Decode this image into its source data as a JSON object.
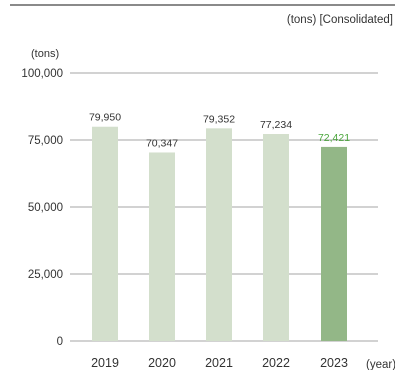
{
  "chart_data": {
    "type": "bar",
    "unit_note": "(tons) [Consolidated]",
    "y_unit": "(tons)",
    "x_unit": "(year)",
    "categories": [
      "2019",
      "2020",
      "2021",
      "2022",
      "2023"
    ],
    "values": [
      79950,
      70347,
      79352,
      77234,
      72421
    ],
    "value_labels": [
      "79,950",
      "70,347",
      "79,352",
      "77,234",
      "72,421"
    ],
    "y_ticks": [
      0,
      25000,
      50000,
      75000,
      100000
    ],
    "y_tick_labels": [
      "0",
      "25,000",
      "50,000",
      "75,000",
      "100,000"
    ],
    "ylim": [
      0,
      100000
    ],
    "grid": true,
    "legend": "none",
    "colors": {
      "bar": "#d3dfcc",
      "bar_highlight": "#93b787",
      "label": "#333333",
      "label_highlight": "#4aa63c",
      "gridline": "#888888",
      "rule": "#444444"
    },
    "highlight_index": 4
  }
}
